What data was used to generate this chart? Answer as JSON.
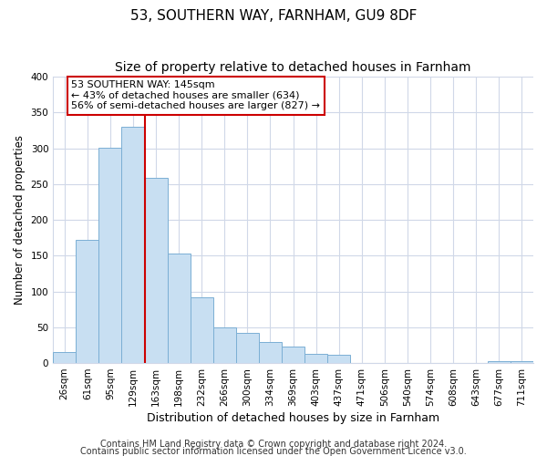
{
  "title": "53, SOUTHERN WAY, FARNHAM, GU9 8DF",
  "subtitle": "Size of property relative to detached houses in Farnham",
  "xlabel": "Distribution of detached houses by size in Farnham",
  "ylabel": "Number of detached properties",
  "bar_labels": [
    "26sqm",
    "61sqm",
    "95sqm",
    "129sqm",
    "163sqm",
    "198sqm",
    "232sqm",
    "266sqm",
    "300sqm",
    "334sqm",
    "369sqm",
    "403sqm",
    "437sqm",
    "471sqm",
    "506sqm",
    "540sqm",
    "574sqm",
    "608sqm",
    "643sqm",
    "677sqm",
    "711sqm"
  ],
  "bar_values": [
    15,
    172,
    301,
    330,
    259,
    153,
    92,
    50,
    42,
    29,
    23,
    13,
    11,
    0,
    0,
    0,
    0,
    0,
    0,
    3,
    2
  ],
  "bar_color": "#c8dff2",
  "bar_edge_color": "#7bafd4",
  "vline_x": 3.5,
  "vline_color": "#cc0000",
  "annotation_title": "53 SOUTHERN WAY: 145sqm",
  "annotation_line1": "← 43% of detached houses are smaller (634)",
  "annotation_line2": "56% of semi-detached houses are larger (827) →",
  "annotation_box_color": "#ffffff",
  "annotation_box_edge": "#cc0000",
  "ylim": [
    0,
    400
  ],
  "yticks": [
    0,
    50,
    100,
    150,
    200,
    250,
    300,
    350,
    400
  ],
  "footer1": "Contains HM Land Registry data © Crown copyright and database right 2024.",
  "footer2": "Contains public sector information licensed under the Open Government Licence v3.0.",
  "bg_color": "#ffffff",
  "plot_bg_color": "#ffffff",
  "title_fontsize": 11,
  "subtitle_fontsize": 10,
  "xlabel_fontsize": 9,
  "ylabel_fontsize": 8.5,
  "tick_fontsize": 7.5,
  "footer_fontsize": 7,
  "grid_color": "#d0d8e8"
}
